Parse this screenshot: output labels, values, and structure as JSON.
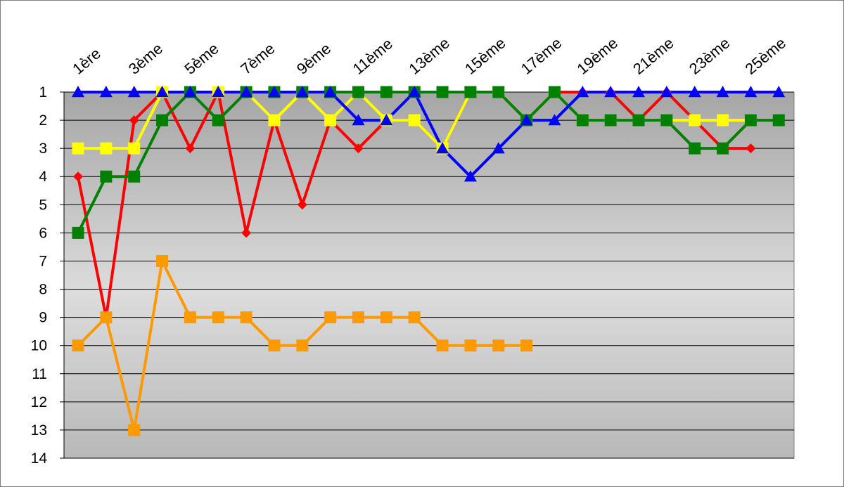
{
  "chart_data": {
    "type": "line",
    "title": "",
    "xlabel": "",
    "ylabel": "",
    "x": [
      1,
      2,
      3,
      4,
      5,
      6,
      7,
      8,
      9,
      10,
      11,
      12,
      13,
      14,
      15,
      16,
      17,
      18,
      19,
      20,
      21,
      22,
      23,
      24,
      25,
      26
    ],
    "xtick_labels": [
      "1ère",
      "3ème",
      "5ème",
      "7ème",
      "9ème",
      "11ème",
      "13ème",
      "15ème",
      "17ème",
      "19ème",
      "21ème",
      "23ème",
      "25ème"
    ],
    "xtick_positions": [
      1,
      3,
      5,
      7,
      9,
      11,
      13,
      15,
      17,
      19,
      21,
      23,
      25
    ],
    "yticks": [
      1,
      2,
      3,
      4,
      5,
      6,
      7,
      8,
      9,
      10,
      11,
      12,
      13,
      14
    ],
    "ylim": [
      1,
      14
    ],
    "y_inverted": true,
    "grid": true,
    "legend": "none",
    "series": [
      {
        "color": "#ff0000",
        "marker": "diamond",
        "values": [
          4,
          9,
          2,
          1,
          3,
          1,
          6,
          2,
          5,
          2,
          3,
          2,
          2,
          3,
          1,
          1,
          2,
          1,
          1,
          1,
          2,
          1,
          2,
          3,
          3,
          null
        ]
      },
      {
        "color": "#ffff00",
        "marker": "square",
        "values": [
          3,
          3,
          3,
          1,
          1,
          1,
          1,
          2,
          1,
          2,
          1,
          2,
          2,
          3,
          1,
          1,
          2,
          1,
          2,
          2,
          2,
          2,
          2,
          2,
          2,
          null
        ]
      },
      {
        "color": "#008000",
        "marker": "square",
        "values": [
          6,
          4,
          4,
          2,
          1,
          2,
          1,
          1,
          1,
          1,
          1,
          1,
          1,
          1,
          1,
          1,
          2,
          1,
          2,
          2,
          2,
          2,
          3,
          3,
          2,
          2
        ]
      },
      {
        "color": "#0000ff",
        "marker": "triangle",
        "values": [
          1,
          1,
          1,
          1,
          1,
          1,
          1,
          1,
          1,
          1,
          2,
          2,
          1,
          3,
          4,
          3,
          2,
          2,
          1,
          1,
          1,
          1,
          1,
          1,
          1,
          1
        ]
      },
      {
        "color": "#ff9900",
        "marker": "square",
        "values": [
          10,
          9,
          13,
          7,
          9,
          9,
          9,
          10,
          10,
          9,
          9,
          9,
          9,
          10,
          10,
          10,
          10,
          null,
          null,
          null,
          null,
          null,
          null,
          null,
          null,
          null
        ]
      }
    ]
  }
}
